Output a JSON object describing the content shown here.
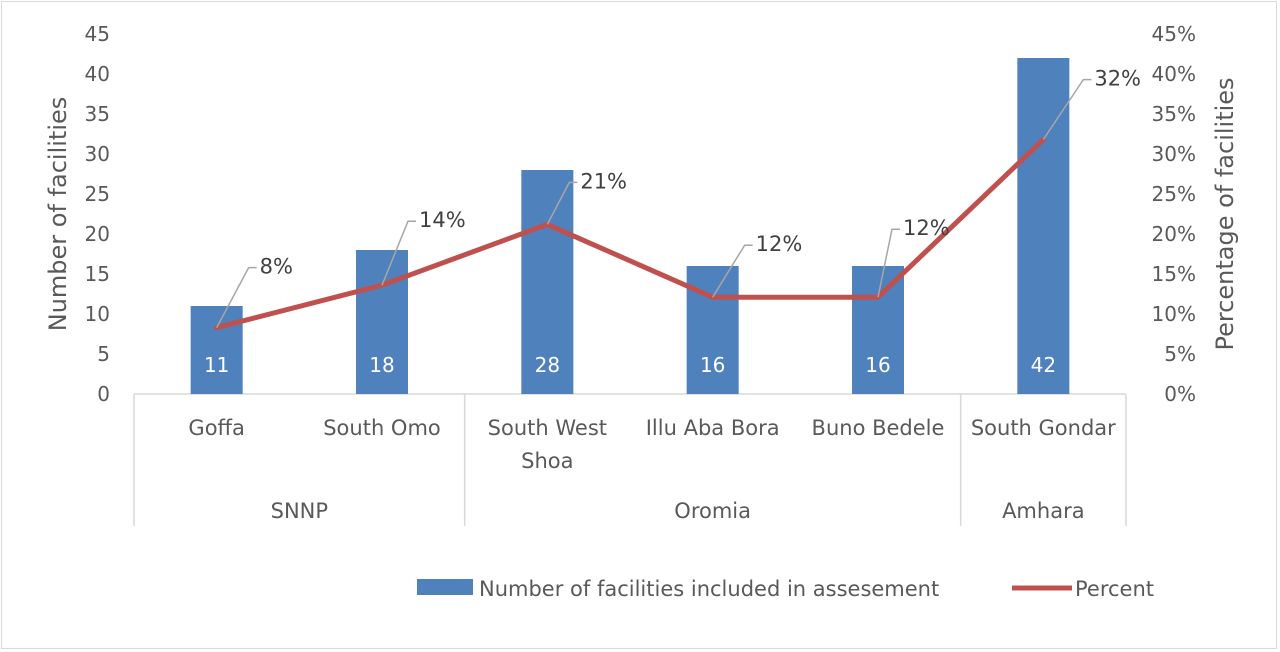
{
  "chart_data": {
    "type": "bar",
    "categories": [
      "Goffa",
      "South Omo",
      "South West Shoa",
      "Illu Aba Bora",
      "Buno Bedele",
      "South Gondar"
    ],
    "category_lines": [
      [
        "Goffa"
      ],
      [
        "South Omo"
      ],
      [
        "South West",
        "Shoa"
      ],
      [
        "Illu Aba Bora"
      ],
      [
        "Buno Bedele"
      ],
      [
        "South Gondar"
      ]
    ],
    "groups": [
      {
        "label": "SNNP",
        "span": 2
      },
      {
        "label": "Oromia",
        "span": 3
      },
      {
        "label": "Amhara",
        "span": 1
      }
    ],
    "series": [
      {
        "name": "Number of facilities included in assesement",
        "kind": "bar",
        "axis": "left",
        "color": "#4f81bd",
        "values": [
          11,
          18,
          28,
          16,
          16,
          42
        ],
        "labels": [
          "11",
          "18",
          "28",
          "16",
          "16",
          "42"
        ]
      },
      {
        "name": "Percent",
        "kind": "line",
        "axis": "right",
        "color": "#c0504d",
        "values": [
          8.3,
          13.6,
          21.2,
          12.1,
          12.1,
          31.8
        ],
        "labels": [
          "8%",
          "14%",
          "21%",
          "12%",
          "12%",
          "32%"
        ]
      }
    ],
    "ylabel": "Number of facilities",
    "y2label": "Percentage of facilities",
    "ylim": [
      0,
      45
    ],
    "y2lim": [
      0,
      45
    ],
    "yticks": [
      "0",
      "5",
      "10",
      "15",
      "20",
      "25",
      "30",
      "35",
      "40",
      "45"
    ],
    "y2ticks": [
      "0%",
      "5%",
      "10%",
      "15%",
      "20%",
      "25%",
      "30%",
      "35%",
      "40%",
      "45%"
    ],
    "grid": false,
    "legend": "bottom"
  }
}
